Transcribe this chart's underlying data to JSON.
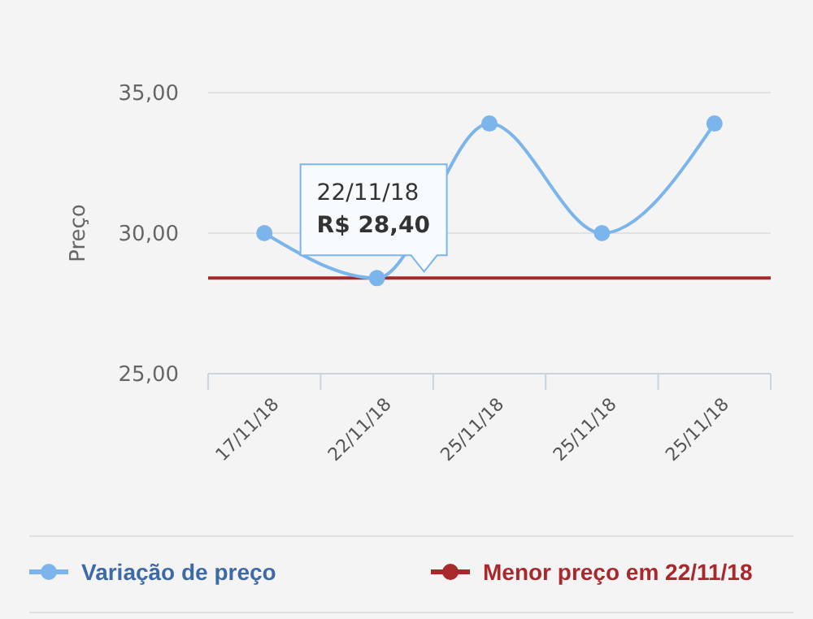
{
  "chart_data": {
    "type": "line",
    "ylabel": "Preço",
    "categories": [
      "17/11/18",
      "22/11/18",
      "25/11/18",
      "25/11/18",
      "25/11/18"
    ],
    "series": [
      {
        "name": "Variação de preço",
        "color": "#7cb5ec",
        "values": [
          30,
          28.4,
          33.9,
          30,
          33.9
        ]
      }
    ],
    "ylim": [
      25,
      35
    ],
    "yticks": [
      {
        "value": 25,
        "label": "25,00"
      },
      {
        "value": 30,
        "label": "30,00"
      },
      {
        "value": 35,
        "label": "35,00"
      }
    ],
    "grid": "y",
    "marker": "circle",
    "legend": "bottom",
    "ref_lines": [
      {
        "axis": "y",
        "value": 28.4,
        "label": "Menor preço em 22/11/18",
        "color": "#a8282c"
      }
    ],
    "annotations": [
      {
        "text": "22/11/18\nR$ 28,40",
        "x": "22/11/18",
        "y": 28.4
      }
    ]
  }
}
